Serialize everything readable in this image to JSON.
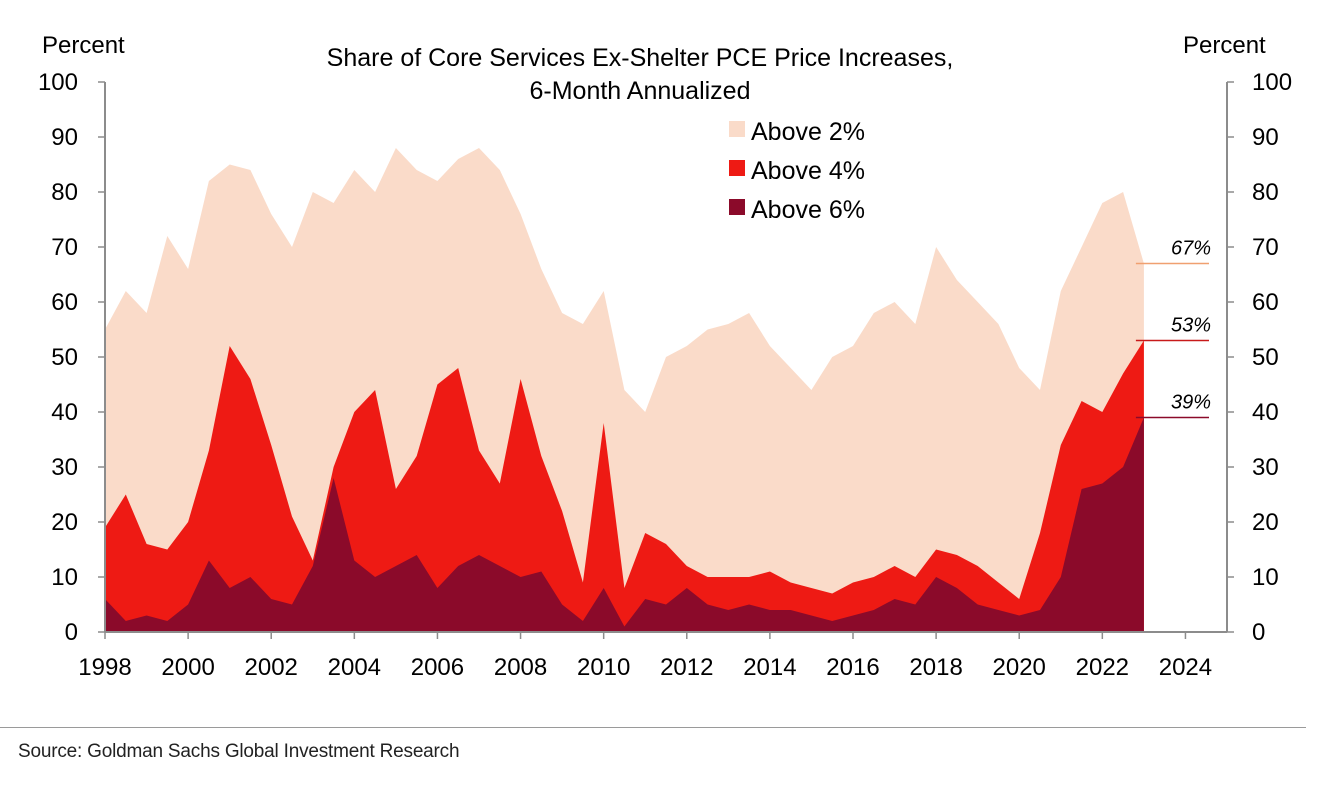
{
  "chart_data": {
    "type": "area",
    "title_lines": [
      "Share of Core Services Ex-Shelter PCE Price Increases,",
      "6-Month Annualized"
    ],
    "left_unit": "Percent",
    "right_unit": "Percent",
    "xlim": [
      1998,
      2025
    ],
    "ylim": [
      0,
      100
    ],
    "x_ticks": [
      "1998",
      "2000",
      "2002",
      "2004",
      "2006",
      "2008",
      "2010",
      "2012",
      "2014",
      "2016",
      "2018",
      "2020",
      "2022",
      "2024"
    ],
    "y_ticks": [
      "0",
      "10",
      "20",
      "30",
      "40",
      "50",
      "60",
      "70",
      "80",
      "90",
      "100"
    ],
    "x": [
      1998.0,
      1998.5,
      1999.0,
      1999.5,
      2000.0,
      2000.5,
      2001.0,
      2001.5,
      2002.0,
      2002.5,
      2003.0,
      2003.5,
      2004.0,
      2004.5,
      2005.0,
      2005.5,
      2006.0,
      2006.5,
      2007.0,
      2007.5,
      2008.0,
      2008.5,
      2009.0,
      2009.5,
      2010.0,
      2010.5,
      2011.0,
      2011.5,
      2012.0,
      2012.5,
      2013.0,
      2013.5,
      2014.0,
      2014.5,
      2015.0,
      2015.5,
      2016.0,
      2016.5,
      2017.0,
      2017.5,
      2018.0,
      2018.5,
      2019.0,
      2019.5,
      2020.0,
      2020.5,
      2021.0,
      2021.5,
      2022.0,
      2022.5,
      2023.0
    ],
    "series": [
      {
        "name": "Above 2%",
        "color": "#fadbc9",
        "values": [
          55,
          62,
          58,
          72,
          66,
          82,
          85,
          84,
          76,
          70,
          80,
          78,
          84,
          80,
          88,
          84,
          82,
          86,
          88,
          84,
          76,
          66,
          58,
          56,
          62,
          44,
          40,
          50,
          52,
          55,
          56,
          58,
          52,
          48,
          44,
          50,
          52,
          58,
          60,
          56,
          70,
          64,
          60,
          56,
          48,
          44,
          62,
          70,
          78,
          80,
          67
        ]
      },
      {
        "name": "Above 4%",
        "color": "#ee1a14",
        "values": [
          19,
          25,
          16,
          15,
          20,
          33,
          52,
          46,
          34,
          21,
          13,
          30,
          40,
          44,
          26,
          32,
          45,
          48,
          33,
          27,
          46,
          32,
          22,
          9,
          38,
          8,
          18,
          16,
          12,
          10,
          10,
          10,
          11,
          9,
          8,
          7,
          9,
          10,
          12,
          10,
          15,
          14,
          12,
          9,
          6,
          18,
          34,
          42,
          40,
          47,
          53
        ]
      },
      {
        "name": "Above 6%",
        "color": "#8b0a2a",
        "values": [
          6,
          2,
          3,
          2,
          5,
          13,
          8,
          10,
          6,
          5,
          12,
          28,
          13,
          10,
          12,
          14,
          8,
          12,
          14,
          12,
          10,
          11,
          5,
          2,
          8,
          1,
          6,
          5,
          8,
          5,
          4,
          5,
          4,
          4,
          3,
          2,
          3,
          4,
          6,
          5,
          10,
          8,
          5,
          4,
          3,
          4,
          10,
          26,
          27,
          30,
          39
        ]
      }
    ],
    "callouts": [
      {
        "label": "67%",
        "value": 67,
        "color": "#f0a070"
      },
      {
        "label": "53%",
        "value": 53,
        "color": "#c81a1a"
      },
      {
        "label": "39%",
        "value": 39,
        "color": "#8b0a2a"
      }
    ],
    "legend_position": "top-center",
    "grid": false
  },
  "source_text": "Source: Goldman Sachs Global Investment Research"
}
